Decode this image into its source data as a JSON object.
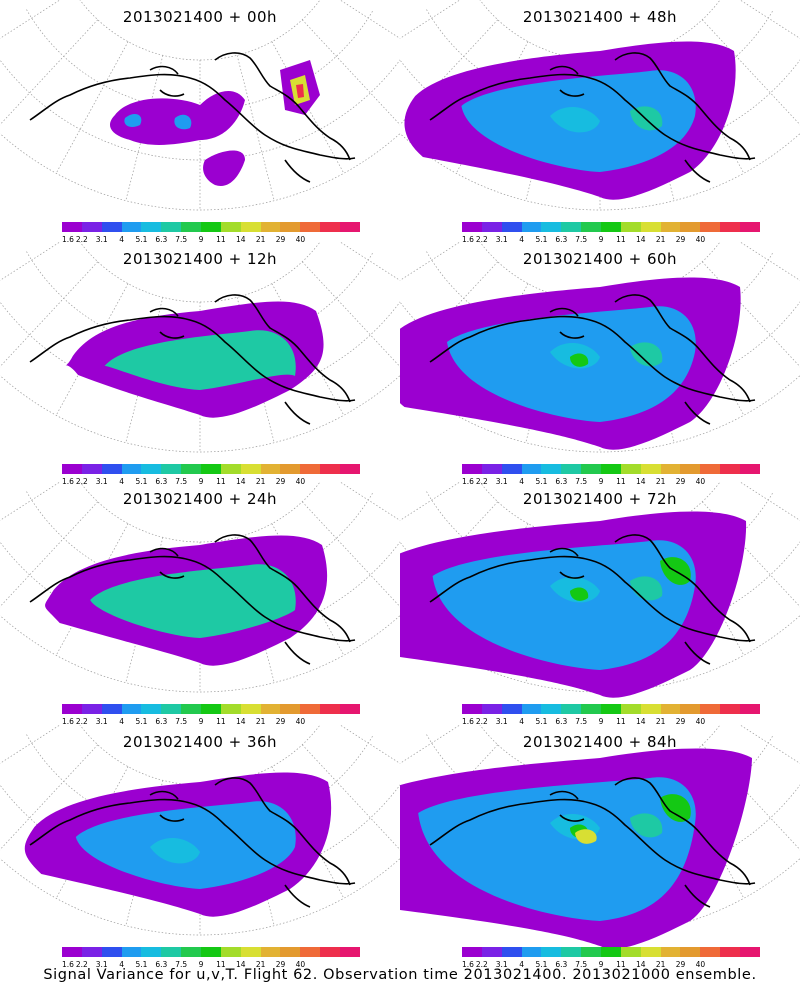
{
  "caption": "Signal Variance for u,v,T. Flight 62. Observation time 2013021400. 2013021000 ensemble.",
  "colorbar": {
    "colors": [
      "#9b00d0",
      "#7a22e6",
      "#2f4fef",
      "#1f9cf0",
      "#17bce0",
      "#1ec9a4",
      "#22c94e",
      "#14c814",
      "#a3dc2a",
      "#d8df33",
      "#e2b233",
      "#e39a2f",
      "#ef6a38",
      "#ee2f4c",
      "#e6166f"
    ],
    "labels": [
      "1.6",
      "2.2",
      "3.1",
      "4",
      "5.1",
      "6.3",
      "7.5",
      "9",
      "11",
      "14",
      "21",
      "29",
      "40"
    ]
  },
  "panels": [
    {
      "title": "2013021400 + 00h",
      "level": 0
    },
    {
      "title": "2013021400 + 48h",
      "level": 4
    },
    {
      "title": "2013021400 + 12h",
      "level": 1
    },
    {
      "title": "2013021400 + 60h",
      "level": 5
    },
    {
      "title": "2013021400 + 24h",
      "level": 2
    },
    {
      "title": "2013021400 + 72h",
      "level": 6
    },
    {
      "title": "2013021400 + 36h",
      "level": 3
    },
    {
      "title": "2013021400 + 84h",
      "level": 7
    }
  ]
}
